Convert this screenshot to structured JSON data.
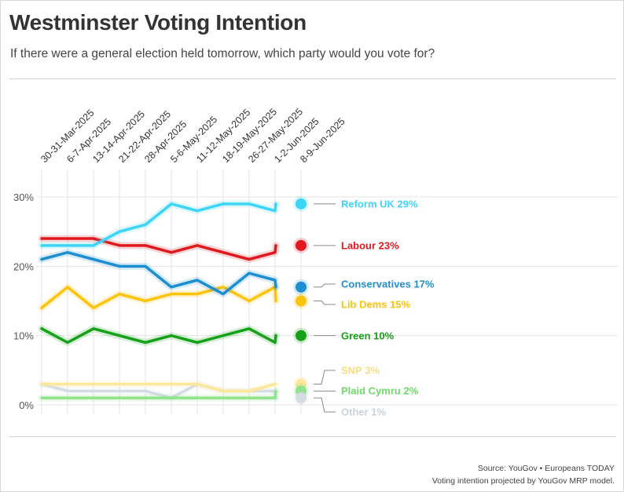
{
  "header": {
    "title": "Westminster Voting Intention",
    "subtitle": "If there were a general election held tomorrow, which party would you vote for?"
  },
  "footer": {
    "source": "Source: YouGov • Europeans TODAY",
    "note": "Voting intention projected by YouGov MRP model."
  },
  "chart_data": {
    "type": "line",
    "title": "Westminster Voting Intention",
    "subtitle": "If there were a general election held tomorrow, which party would you vote for?",
    "xlabel": "",
    "ylabel": "",
    "categories": [
      "30-31-Mar-2025",
      "6-7-Apr-2025",
      "13-14-Apr-2025",
      "21-22-Apr-2025",
      "28-Apr-2025",
      "5-6-May-2025",
      "11-12-May-2025",
      "18-19-May-2025",
      "26-27-May-2025",
      "1-2-Jun-2025",
      "8-9-Jun-2025"
    ],
    "ylim": [
      0,
      30
    ],
    "yticks": [
      0,
      10,
      20,
      30
    ],
    "ytick_labels": [
      "0%",
      "10%",
      "20%",
      "30%"
    ],
    "grid": true,
    "legend": "direct labels at right end of lines",
    "series": [
      {
        "name": "Reform UK",
        "label": "Reform UK 29%",
        "color": "#3dd5f7",
        "values": [
          23,
          23,
          23,
          25,
          26,
          29,
          28,
          29,
          29,
          28,
          29
        ]
      },
      {
        "name": "Labour",
        "label": "Labour 23%",
        "color": "#e0191e",
        "values": [
          24,
          24,
          24,
          23,
          23,
          22,
          23,
          22,
          21,
          22,
          23
        ]
      },
      {
        "name": "Conservatives",
        "label": "Conservatives 17%",
        "color": "#1d8fd0",
        "values": [
          21,
          22,
          21,
          20,
          20,
          17,
          18,
          16,
          19,
          18,
          17
        ]
      },
      {
        "name": "Lib Dems",
        "label": "Lib Dems 15%",
        "color": "#fcc30b",
        "values": [
          14,
          17,
          14,
          16,
          15,
          16,
          16,
          17,
          15,
          17,
          15
        ]
      },
      {
        "name": "Green",
        "label": "Green 10%",
        "color": "#17a019",
        "values": [
          11,
          9,
          11,
          10,
          9,
          10,
          9,
          10,
          11,
          9,
          10
        ]
      },
      {
        "name": "SNP",
        "label": "SNP 3%",
        "color": "#fde79b",
        "values": [
          3,
          3,
          3,
          3,
          3,
          3,
          3,
          2,
          2,
          3,
          3
        ]
      },
      {
        "name": "Plaid Cymru",
        "label": "Plaid Cymru 2%",
        "color": "#8ee48a",
        "values": [
          1,
          1,
          1,
          1,
          1,
          1,
          1,
          1,
          1,
          1,
          2
        ]
      },
      {
        "name": "Other",
        "label": "Other 1%",
        "color": "#d3dde3",
        "values": [
          3,
          2,
          2,
          2,
          2,
          1,
          3,
          2,
          2,
          2,
          1
        ]
      }
    ]
  }
}
